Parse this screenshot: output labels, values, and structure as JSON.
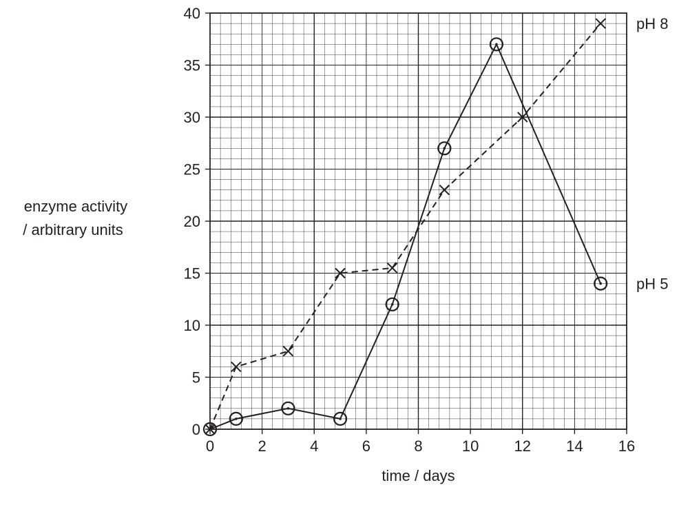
{
  "chart_data": {
    "type": "line",
    "title": "",
    "xlabel": "time / days",
    "ylabel_lines": [
      "enzyme activity",
      "/ arbitrary units"
    ],
    "xlim": [
      0,
      16
    ],
    "ylim": [
      0,
      40
    ],
    "x_ticks": [
      0,
      2,
      4,
      6,
      8,
      10,
      12,
      14,
      16
    ],
    "y_ticks": [
      0,
      5,
      10,
      15,
      20,
      25,
      30,
      35,
      40
    ],
    "grid": true,
    "series": [
      {
        "name": "pH 8",
        "marker": "cross",
        "line_style": "dashed",
        "color": "#231f20",
        "x": [
          0,
          1,
          3,
          5,
          7,
          9,
          12,
          15
        ],
        "y": [
          0,
          6,
          7.5,
          15,
          15.5,
          23,
          30,
          39
        ]
      },
      {
        "name": "pH 5",
        "marker": "circle",
        "line_style": "solid",
        "color": "#231f20",
        "x": [
          0,
          1,
          3,
          5,
          7,
          9,
          11,
          15
        ],
        "y": [
          0,
          1,
          2,
          1,
          12,
          27,
          37,
          14
        ]
      }
    ]
  }
}
